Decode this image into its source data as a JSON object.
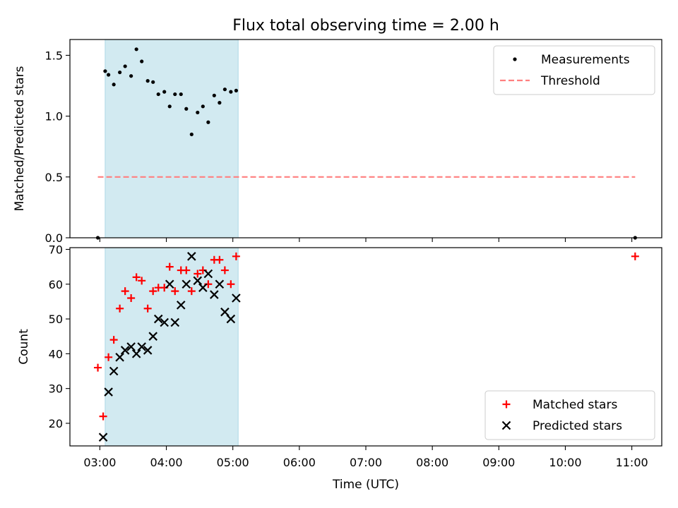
{
  "chart_data": {
    "title": "Flux total observing time = 2.00 h",
    "x_tick_labels": [
      "03:00",
      "04:00",
      "05:00",
      "06:00",
      "07:00",
      "08:00",
      "09:00",
      "10:00",
      "11:00"
    ],
    "x_tick_hours": [
      3,
      4,
      5,
      6,
      7,
      8,
      9,
      10,
      11
    ],
    "xlabel": "Time (UTC)",
    "xlim_hours": [
      2.55,
      11.45
    ],
    "shaded_span_hours": [
      3.08,
      5.08
    ],
    "colors": {
      "shade": "#add8e6",
      "matched": "#ff0000",
      "predicted": "#000000",
      "threshold": "#ff7f7f",
      "measure": "#000000"
    },
    "panels": [
      {
        "type": "scatter",
        "ylabel": "Matched/Predicted stars",
        "ylim": [
          0,
          1.63
        ],
        "yticks": [
          0.0,
          0.5,
          1.0,
          1.5
        ],
        "ytick_labels": [
          "0.0",
          "0.5",
          "1.0",
          "1.5"
        ],
        "legend_position": "top-right",
        "series": [
          {
            "name": "Measurements",
            "marker": "dot",
            "x": [
              2.97,
              3.08,
              3.13,
              3.21,
              3.3,
              3.38,
              3.47,
              3.55,
              3.63,
              3.72,
              3.8,
              3.88,
              3.97,
              4.05,
              4.13,
              4.22,
              4.3,
              4.38,
              4.47,
              4.55,
              4.63,
              4.72,
              4.8,
              4.88,
              4.97,
              5.05,
              11.05
            ],
            "y": [
              0.0,
              1.37,
              1.34,
              1.26,
              1.36,
              1.41,
              1.33,
              1.55,
              1.45,
              1.29,
              1.28,
              1.18,
              1.2,
              1.08,
              1.18,
              1.18,
              1.06,
              0.85,
              1.03,
              1.08,
              0.95,
              1.17,
              1.11,
              1.22,
              1.2,
              1.21,
              0.0
            ]
          },
          {
            "name": "Threshold",
            "marker": "dashed-line",
            "x": [
              2.97,
              11.05
            ],
            "y": [
              0.5,
              0.5
            ]
          }
        ]
      },
      {
        "type": "scatter",
        "ylabel": "Count",
        "ylim": [
          13.5,
          70.5
        ],
        "yticks": [
          20,
          30,
          40,
          50,
          60,
          70
        ],
        "ytick_labels": [
          "20",
          "30",
          "40",
          "50",
          "60",
          "70"
        ],
        "legend_position": "bottom-right",
        "series": [
          {
            "name": "Matched stars",
            "marker": "plus",
            "x": [
              2.97,
              3.05,
              3.13,
              3.21,
              3.3,
              3.38,
              3.47,
              3.55,
              3.63,
              3.72,
              3.8,
              3.88,
              3.97,
              4.05,
              4.13,
              4.22,
              4.3,
              4.38,
              4.47,
              4.55,
              4.63,
              4.72,
              4.8,
              4.88,
              4.97,
              5.05,
              11.05
            ],
            "y": [
              36,
              22,
              39,
              44,
              53,
              58,
              56,
              62,
              61,
              53,
              58,
              59,
              59,
              65,
              58,
              64,
              64,
              58,
              63,
              64,
              60,
              67,
              67,
              64,
              60,
              68,
              68
            ]
          },
          {
            "name": "Predicted stars",
            "marker": "x",
            "x": [
              3.05,
              3.13,
              3.21,
              3.3,
              3.38,
              3.47,
              3.55,
              3.63,
              3.72,
              3.8,
              3.88,
              3.97,
              4.05,
              4.13,
              4.22,
              4.3,
              4.38,
              4.47,
              4.55,
              4.63,
              4.72,
              4.8,
              4.88,
              4.97,
              5.05
            ],
            "y": [
              16,
              29,
              35,
              39,
              41,
              42,
              40,
              42,
              41,
              45,
              50,
              49,
              60,
              49,
              54,
              60,
              68,
              61,
              59,
              63,
              57,
              60,
              52,
              50,
              56
            ]
          }
        ]
      }
    ]
  }
}
